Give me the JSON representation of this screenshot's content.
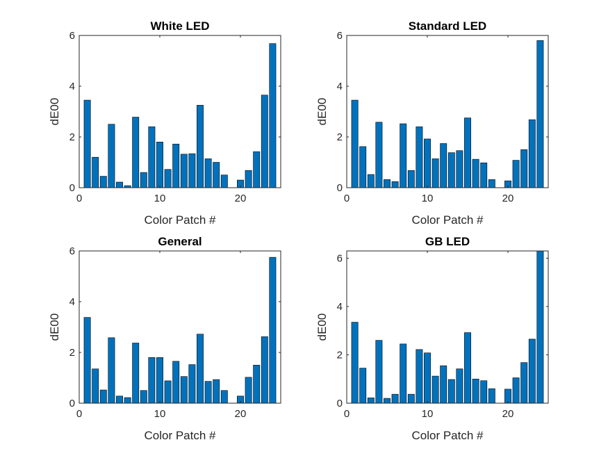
{
  "chart_data": [
    {
      "type": "bar",
      "title": "White LED",
      "xlabel": "Color Patch #",
      "ylabel": "dE00",
      "xlim": [
        0,
        25
      ],
      "ylim": [
        0,
        6
      ],
      "xticks": [
        0,
        10,
        20
      ],
      "yticks": [
        0,
        2,
        4,
        6
      ],
      "bar_color": "#0072BD",
      "categories": [
        1,
        2,
        3,
        4,
        5,
        6,
        7,
        8,
        9,
        10,
        11,
        12,
        13,
        14,
        15,
        16,
        17,
        18,
        19,
        20,
        21,
        22,
        23,
        24
      ],
      "values": [
        3.45,
        1.2,
        0.45,
        2.5,
        0.22,
        0.08,
        2.78,
        0.6,
        2.4,
        1.8,
        0.72,
        1.72,
        1.32,
        1.34,
        3.25,
        1.14,
        1.0,
        0.5,
        0.0,
        0.3,
        0.68,
        1.42,
        3.65,
        5.68
      ]
    },
    {
      "type": "bar",
      "title": "Standard LED",
      "xlabel": "Color Patch #",
      "ylabel": "dE00",
      "xlim": [
        0,
        25
      ],
      "ylim": [
        0,
        6
      ],
      "xticks": [
        0,
        10,
        20
      ],
      "yticks": [
        0,
        2,
        4,
        6
      ],
      "bar_color": "#0072BD",
      "categories": [
        1,
        2,
        3,
        4,
        5,
        6,
        7,
        8,
        9,
        10,
        11,
        12,
        13,
        14,
        15,
        16,
        17,
        18,
        19,
        20,
        21,
        22,
        23,
        24
      ],
      "values": [
        3.45,
        1.62,
        0.52,
        2.58,
        0.32,
        0.24,
        2.52,
        0.68,
        2.4,
        1.92,
        1.14,
        1.74,
        1.38,
        1.46,
        2.75,
        1.12,
        0.98,
        0.32,
        0.0,
        0.27,
        1.08,
        1.5,
        2.68,
        5.8
      ]
    },
    {
      "type": "bar",
      "title": "General",
      "xlabel": "Color Patch #",
      "ylabel": "dE00",
      "xlim": [
        0,
        25
      ],
      "ylim": [
        0,
        6
      ],
      "xticks": [
        0,
        10,
        20
      ],
      "yticks": [
        0,
        2,
        4,
        6
      ],
      "bar_color": "#0072BD",
      "categories": [
        1,
        2,
        3,
        4,
        5,
        6,
        7,
        8,
        9,
        10,
        11,
        12,
        13,
        14,
        15,
        16,
        17,
        18,
        19,
        20,
        21,
        22,
        23,
        24
      ],
      "values": [
        3.38,
        1.35,
        0.52,
        2.58,
        0.28,
        0.22,
        2.37,
        0.5,
        1.8,
        1.8,
        0.88,
        1.65,
        1.05,
        1.52,
        2.72,
        0.86,
        0.93,
        0.5,
        0.0,
        0.28,
        1.02,
        1.5,
        2.62,
        5.75
      ]
    },
    {
      "type": "bar",
      "title": "GB LED",
      "xlabel": "Color Patch #",
      "ylabel": "dE00",
      "xlim": [
        0,
        25
      ],
      "ylim": [
        0,
        6.3
      ],
      "xticks": [
        0,
        10,
        20
      ],
      "yticks": [
        0,
        2,
        4,
        6
      ],
      "bar_color": "#0072BD",
      "categories": [
        1,
        2,
        3,
        4,
        5,
        6,
        7,
        8,
        9,
        10,
        11,
        12,
        13,
        14,
        15,
        16,
        17,
        18,
        19,
        20,
        21,
        22,
        23,
        24
      ],
      "values": [
        3.35,
        1.45,
        0.22,
        2.6,
        0.2,
        0.37,
        2.45,
        0.37,
        2.22,
        2.08,
        1.12,
        1.55,
        0.98,
        1.42,
        2.92,
        1.0,
        0.93,
        0.6,
        0.0,
        0.58,
        1.05,
        1.68,
        2.65,
        6.3
      ]
    }
  ]
}
